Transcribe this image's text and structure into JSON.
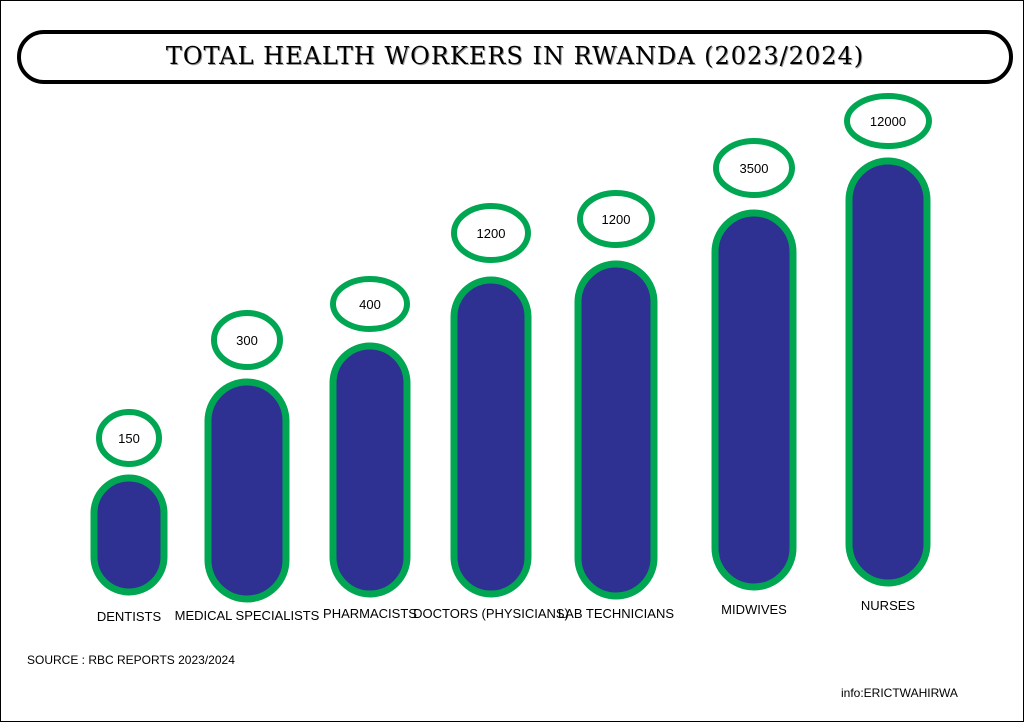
{
  "chart_data": {
    "type": "bar",
    "title": "TOTAL HEALTH WORKERS IN RWANDA (2023/2024)",
    "categories": [
      "DENTISTS",
      "MEDICAL SPECIALISTS",
      "PHARMACISTS",
      "DOCTORS (PHYSICIANS)",
      "LAB TECHNICIANS",
      "MIDWIVES",
      "NURSES"
    ],
    "values": [
      150,
      300,
      400,
      1200,
      1200,
      3500,
      12000
    ],
    "value_labels": [
      "150",
      "300",
      "400",
      "1200",
      "1200",
      "3500",
      "12000"
    ],
    "bar_color": "#2e3192",
    "outline_color": "#00a651",
    "grid": false,
    "legend": "none"
  },
  "footer": {
    "source": "SOURCE : RBC REPORTS 2023/2024",
    "credit": "info:ERICTWAHIRWA"
  }
}
